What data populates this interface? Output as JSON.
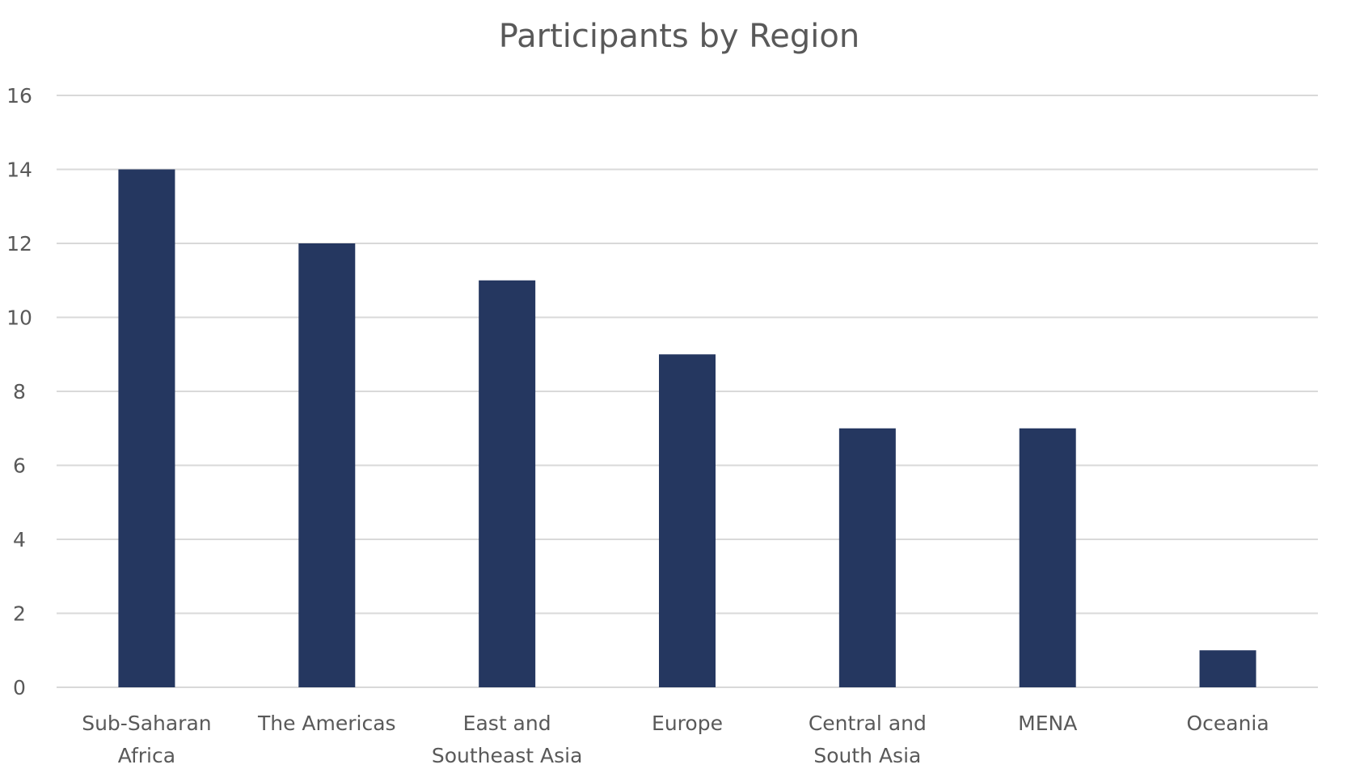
{
  "chart_data": {
    "type": "bar",
    "title": "Participants by Region",
    "xlabel": "",
    "ylabel": "",
    "categories": [
      [
        "Sub-Saharan",
        "Africa"
      ],
      [
        "The Americas"
      ],
      [
        "East and",
        "Southeast Asia"
      ],
      [
        "Europe"
      ],
      [
        "Central and",
        "South Asia"
      ],
      [
        "MENA"
      ],
      [
        "Oceania"
      ]
    ],
    "values": [
      14,
      12,
      11,
      9,
      7,
      7,
      1
    ],
    "ylim": [
      0,
      16
    ],
    "yticks": [
      "0",
      "2",
      "4",
      "6",
      "8",
      "10",
      "12",
      "14",
      "16"
    ],
    "grid": true,
    "legend": "none",
    "bar_color": "#253760"
  }
}
